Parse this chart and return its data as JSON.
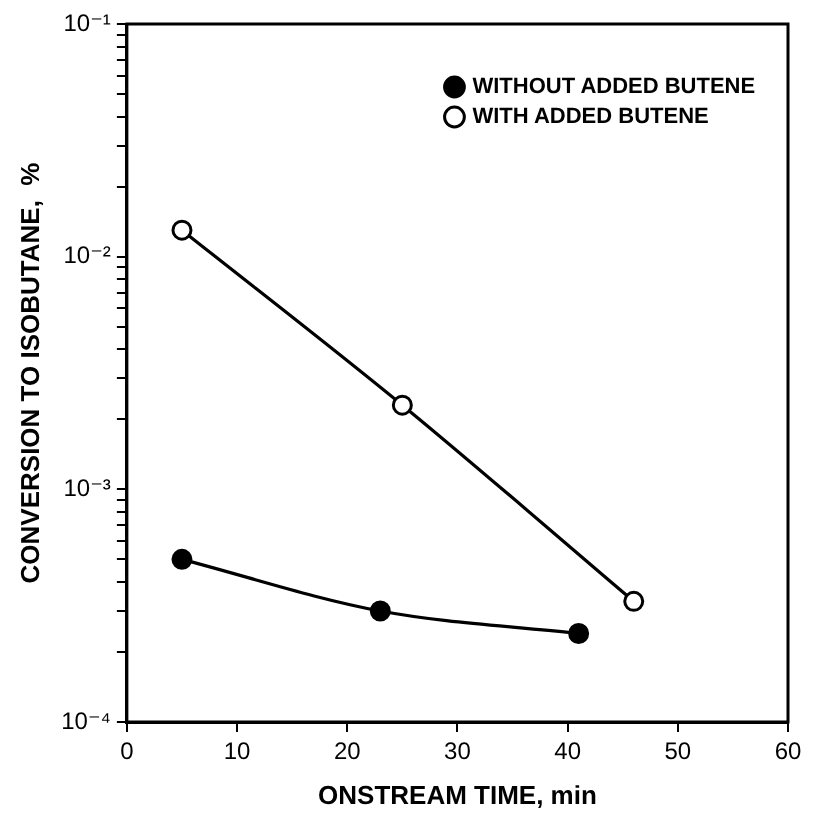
{
  "chart_data": {
    "type": "line",
    "xlabel": "ONSTREAM TIME, min",
    "ylabel": "CONVERSION TO ISOBUTANE,  %",
    "x": [
      5,
      23,
      41
    ],
    "series": [
      {
        "name": "WITHOUT ADDED BUTENE",
        "color": "#000000",
        "values": [
          0.0005,
          0.0003,
          0.00024
        ]
      },
      {
        "name": "WITH ADDED BUTENE",
        "color": "#000000",
        "x": [
          5,
          25,
          46
        ],
        "values": [
          0.013,
          0.0023,
          0.00033
        ]
      }
    ],
    "log": "y",
    "xlim": [
      0,
      60
    ],
    "xticks": [
      0,
      10,
      20,
      30,
      40,
      50,
      60
    ],
    "ylim": [
      0.0001,
      0.1
    ],
    "yticks": [
      {
        "value": 0.0001,
        "label": "10⁻⁴"
      },
      {
        "value": 0.0002,
        "label": null
      },
      {
        "value": 0.0003,
        "label": null
      },
      {
        "value": 0.0004,
        "label": null
      },
      {
        "value": 0.0005,
        "label": null
      },
      {
        "value": 0.0006,
        "label": null
      },
      {
        "value": 0.0007,
        "label": null
      },
      {
        "value": 0.0008,
        "label": null
      },
      {
        "value": 0.0009,
        "label": null
      },
      {
        "value": 0.001,
        "label": "10⁻³"
      },
      {
        "value": 0.002,
        "label": null
      },
      {
        "value": 0.003,
        "label": null
      },
      {
        "value": 0.004,
        "label": null
      },
      {
        "value": 0.005,
        "label": null
      },
      {
        "value": 0.006,
        "label": null
      },
      {
        "value": 0.007,
        "label": null
      },
      {
        "value": 0.008,
        "label": null
      },
      {
        "value": 0.009,
        "label": null
      },
      {
        "value": 0.01,
        "label": "10⁻²"
      },
      {
        "value": 0.02,
        "label": null
      },
      {
        "value": 0.03,
        "label": null
      },
      {
        "value": 0.04,
        "label": null
      },
      {
        "value": 0.05,
        "label": null
      },
      {
        "value": 0.06,
        "label": null
      },
      {
        "value": 0.07,
        "label": null
      },
      {
        "value": 0.08,
        "label": null
      },
      {
        "value": 0.09,
        "label": null
      },
      {
        "value": 0.1,
        "label": "10⁻¹"
      }
    ],
    "grid": false,
    "legend": "top right",
    "marker": "circle",
    "line_style": "solid"
  }
}
